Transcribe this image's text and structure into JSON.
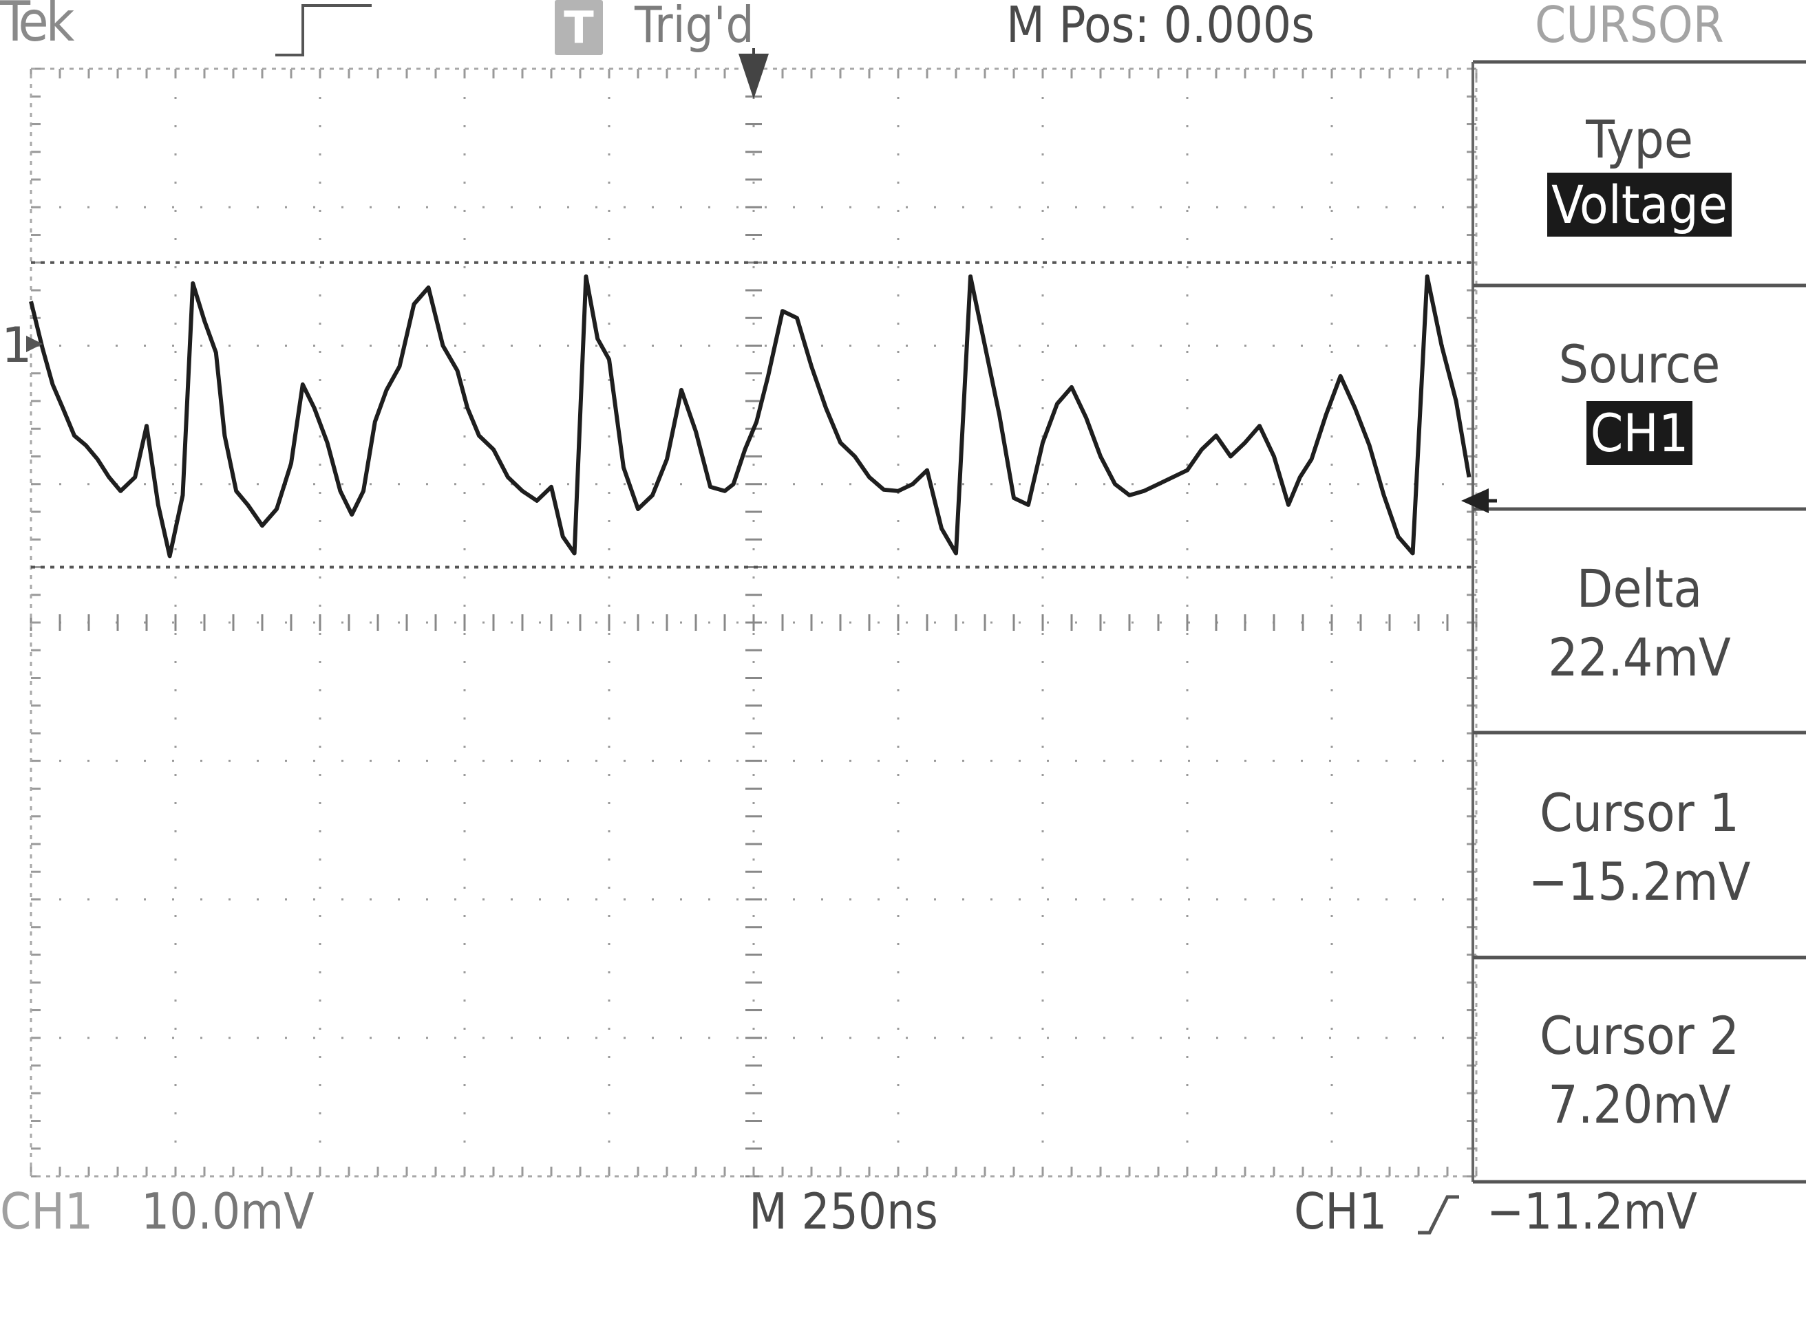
{
  "header": {
    "brand": "Tek",
    "trigger_status": "Trig'd",
    "trigger_status_icon": "T",
    "horizontal_position": "M Pos: 0.000s",
    "menu_title": "CURSOR"
  },
  "side_menu": {
    "type": {
      "label": "Type",
      "value": "Voltage"
    },
    "source": {
      "label": "Source",
      "value": "CH1"
    },
    "delta": {
      "label": "Delta",
      "value": "22.4mV"
    },
    "cursor1": {
      "label": "Cursor 1",
      "value": "−15.2mV"
    },
    "cursor2": {
      "label": "Cursor 2",
      "value": "7.20mV"
    }
  },
  "footer": {
    "channel_label": "CH1",
    "channel_scale": "10.0mV",
    "timebase": "M 250ns",
    "trigger_source": "CH1",
    "trigger_slope_icon": "rising-edge-icon",
    "trigger_level": "−11.2mV"
  },
  "channel_marker": "1",
  "chart_data": {
    "type": "line",
    "x_unit": "div",
    "y_unit": "div",
    "xlim": [
      0,
      10
    ],
    "ylim": [
      -4,
      4
    ],
    "divisions": {
      "x": 10,
      "y": 8
    },
    "grid": true,
    "cursors_y": [
      2.6,
      0.4
    ],
    "series": [
      {
        "x": [
          0,
          0.08,
          0.15,
          0.22,
          0.3,
          0.38,
          0.46,
          0.54,
          0.62,
          0.72,
          0.8,
          0.88,
          0.96,
          1.05,
          1.12,
          1.2,
          1.28,
          1.34,
          1.42,
          1.5,
          1.6,
          1.7,
          1.8,
          1.88,
          1.96,
          2.05,
          2.14,
          2.22,
          2.3,
          2.38,
          2.46,
          2.55,
          2.65,
          2.75,
          2.85,
          2.95,
          3.02,
          3.1,
          3.2,
          3.3,
          3.4,
          3.5,
          3.6,
          3.68,
          3.76,
          3.84,
          3.92,
          4.0,
          4.1,
          4.2,
          4.3,
          4.4,
          4.5,
          4.6,
          4.7,
          4.8,
          4.86,
          4.94,
          5.02,
          5.1,
          5.2,
          5.3,
          5.4,
          5.5,
          5.6,
          5.7,
          5.8,
          5.9,
          6.0,
          6.1,
          6.2,
          6.3,
          6.4,
          6.5,
          6.6,
          6.7,
          6.8,
          6.9,
          7.0,
          7.1,
          7.2,
          7.3,
          7.4,
          7.5,
          7.6,
          7.7,
          7.8,
          7.9,
          8.0,
          8.1,
          8.2,
          8.3,
          8.4,
          8.5,
          8.6,
          8.7,
          8.78,
          8.86,
          8.96,
          9.06,
          9.16,
          9.26,
          9.36,
          9.46,
          9.56,
          9.66,
          9.76,
          9.86,
          9.95
        ],
        "y": [
          2.32,
          1.98,
          1.72,
          1.55,
          1.35,
          1.28,
          1.18,
          1.05,
          0.95,
          1.05,
          1.42,
          0.85,
          0.48,
          0.92,
          2.45,
          2.18,
          1.95,
          1.35,
          0.95,
          0.85,
          0.7,
          0.82,
          1.15,
          1.72,
          1.55,
          1.3,
          0.95,
          0.78,
          0.95,
          1.45,
          1.68,
          1.85,
          2.3,
          2.42,
          2.0,
          1.82,
          1.55,
          1.35,
          1.25,
          1.05,
          0.95,
          0.88,
          0.98,
          0.62,
          0.5,
          2.5,
          2.05,
          1.9,
          1.12,
          0.82,
          0.92,
          1.18,
          1.68,
          1.38,
          0.98,
          0.95,
          1.0,
          1.25,
          1.45,
          1.78,
          2.25,
          2.2,
          1.85,
          1.55,
          1.3,
          1.2,
          1.05,
          0.96,
          0.95,
          1.0,
          1.1,
          0.68,
          0.5,
          2.5,
          2.0,
          1.5,
          0.9,
          0.85,
          1.3,
          1.58,
          1.7,
          1.48,
          1.2,
          1.0,
          0.92,
          0.95,
          1.0,
          1.05,
          1.1,
          1.25,
          1.35,
          1.2,
          1.3,
          1.42,
          1.2,
          0.85,
          1.05,
          1.18,
          1.5,
          1.78,
          1.55,
          1.28,
          0.92,
          0.62,
          0.5,
          2.5,
          2.0,
          1.6,
          1.05
        ]
      }
    ]
  }
}
